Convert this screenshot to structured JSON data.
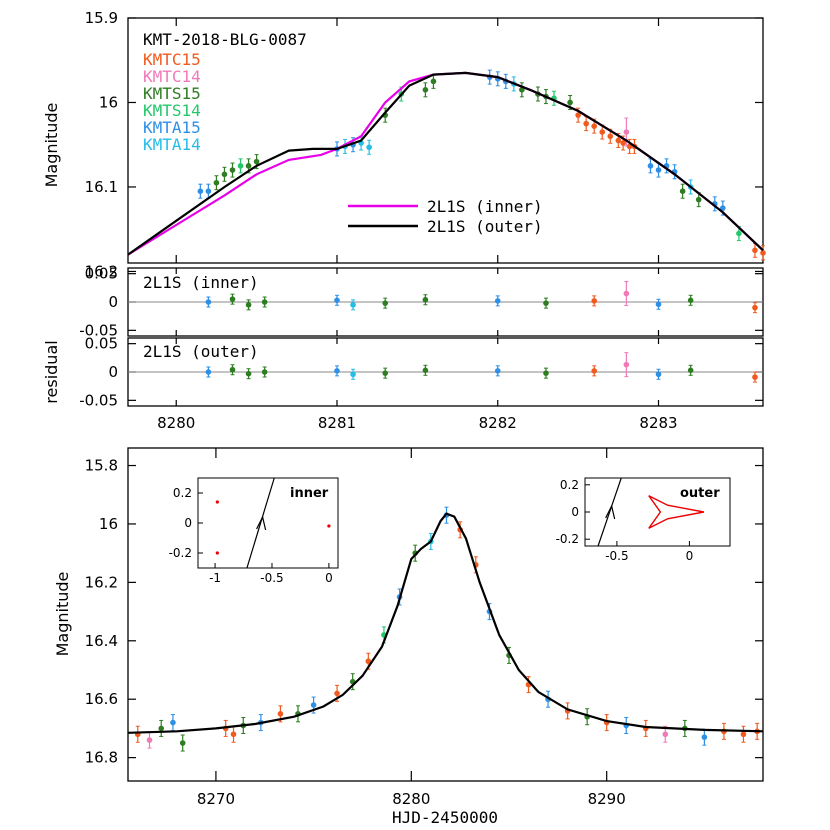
{
  "chart_data": [
    {
      "type": "scatter",
      "panel": "top light curve",
      "ylabel": "Magnitude",
      "xlim": [
        8279.7,
        8283.65
      ],
      "ylim": [
        16.19,
        15.9
      ],
      "y_inverted": true,
      "yticks": [
        15.9,
        16,
        16.1,
        16.2
      ],
      "ytick_labels": [
        "15.9",
        "16",
        "16.1",
        "16.2"
      ],
      "event_label": "KMT-2018-BLG-0087",
      "legend": [
        {
          "name": "KMTC15",
          "color": "#f05a1e"
        },
        {
          "name": "KMTC14",
          "color": "#f07ab8"
        },
        {
          "name": "KMTS15",
          "color": "#2e7d22"
        },
        {
          "name": "KMTS14",
          "color": "#23c76a"
        },
        {
          "name": "KMTA15",
          "color": "#2e8fe6"
        },
        {
          "name": "KMTA14",
          "color": "#25bde6"
        }
      ],
      "models": [
        {
          "name": "2L1S (inner)",
          "color": "#e800e8",
          "x": [
            8279.7,
            8280.0,
            8280.3,
            8280.5,
            8280.7,
            8280.9,
            8281.0,
            8281.15,
            8281.3,
            8281.45,
            8281.6,
            8281.8,
            8282.0,
            8282.2,
            8282.5,
            8282.8,
            8283.1,
            8283.4,
            8283.65
          ],
          "y": [
            16.18,
            16.145,
            16.11,
            16.085,
            16.068,
            16.062,
            16.055,
            16.04,
            16.0,
            15.975,
            15.967,
            15.965,
            15.97,
            15.985,
            16.01,
            16.045,
            16.085,
            16.13,
            16.175
          ]
        },
        {
          "name": "2L1S (outer)",
          "color": "#000000",
          "x": [
            8279.7,
            8280.0,
            8280.3,
            8280.5,
            8280.7,
            8280.85,
            8281.0,
            8281.15,
            8281.3,
            8281.45,
            8281.6,
            8281.8,
            8282.0,
            8282.2,
            8282.5,
            8282.8,
            8283.1,
            8283.4,
            8283.65
          ],
          "y": [
            16.18,
            16.14,
            16.1,
            16.075,
            16.057,
            16.055,
            16.055,
            16.045,
            16.012,
            15.98,
            15.967,
            15.965,
            15.97,
            15.985,
            16.01,
            16.045,
            16.085,
            16.13,
            16.175
          ]
        }
      ],
      "series": [
        {
          "name": "KMTC15",
          "x": [
            8282.5,
            8282.55,
            8282.6,
            8282.65,
            8282.7,
            8282.75,
            8282.78,
            8282.82,
            8282.85,
            8283.6,
            8283.65
          ],
          "y": [
            16.015,
            16.025,
            16.028,
            16.035,
            16.04,
            16.045,
            16.048,
            16.052,
            16.052,
            16.175,
            16.178
          ]
        },
        {
          "name": "KMTC14",
          "x": [
            8282.8
          ],
          "y": [
            16.035
          ]
        },
        {
          "name": "KMTS15",
          "x": [
            8280.25,
            8280.3,
            8280.35,
            8280.45,
            8280.5,
            8281.3,
            8281.55,
            8281.6,
            8282.15,
            8282.25,
            8282.3,
            8282.45,
            8283.15,
            8283.25
          ],
          "y": [
            16.095,
            16.085,
            16.08,
            16.075,
            16.07,
            16.015,
            15.985,
            15.975,
            15.985,
            15.99,
            15.993,
            16.0,
            16.105,
            16.115
          ]
        },
        {
          "name": "KMTS14",
          "x": [
            8280.4,
            8281.4,
            8282.35,
            8283.5
          ],
          "y": [
            16.075,
            15.99,
            15.995,
            16.155
          ]
        },
        {
          "name": "KMTA15",
          "x": [
            8280.15,
            8280.2,
            8281.0,
            8281.1,
            8281.95,
            8282.0,
            8282.05,
            8282.95,
            8283.0,
            8283.05,
            8283.1,
            8283.35,
            8283.4
          ],
          "y": [
            16.105,
            16.105,
            16.055,
            16.05,
            15.97,
            15.972,
            15.975,
            16.075,
            16.08,
            16.075,
            16.082,
            16.12,
            16.125
          ]
        },
        {
          "name": "KMTA14",
          "x": [
            8281.05,
            8281.15,
            8281.2,
            8282.1,
            8283.2
          ],
          "y": [
            16.052,
            16.048,
            16.053,
            15.978,
            16.1
          ]
        }
      ]
    },
    {
      "type": "scatter",
      "panel": "residual (inner)",
      "label": "2L1S (inner)",
      "ylim": [
        -0.06,
        0.06
      ],
      "yticks": [
        0.05,
        0,
        -0.05
      ],
      "ytick_labels": [
        "0.05",
        "0",
        "-0.05"
      ],
      "points": [
        {
          "x": 8280.2,
          "y": 0.0,
          "s": "KMTA15"
        },
        {
          "x": 8280.35,
          "y": 0.005,
          "s": "KMTS15"
        },
        {
          "x": 8280.45,
          "y": -0.005,
          "s": "KMTS15"
        },
        {
          "x": 8280.55,
          "y": 0.0,
          "s": "KMTS15"
        },
        {
          "x": 8281.0,
          "y": 0.003,
          "s": "KMTA15"
        },
        {
          "x": 8281.1,
          "y": -0.005,
          "s": "KMTA14"
        },
        {
          "x": 8281.3,
          "y": -0.002,
          "s": "KMTS15"
        },
        {
          "x": 8281.55,
          "y": 0.004,
          "s": "KMTS15"
        },
        {
          "x": 8282.0,
          "y": 0.002,
          "s": "KMTA15"
        },
        {
          "x": 8282.3,
          "y": -0.002,
          "s": "KMTS15"
        },
        {
          "x": 8282.6,
          "y": 0.002,
          "s": "KMTC15"
        },
        {
          "x": 8282.8,
          "y": 0.015,
          "s": "KMTC14"
        },
        {
          "x": 8283.0,
          "y": -0.004,
          "s": "KMTA15"
        },
        {
          "x": 8283.2,
          "y": 0.003,
          "s": "KMTS15"
        },
        {
          "x": 8283.6,
          "y": -0.01,
          "s": "KMTC15"
        }
      ]
    },
    {
      "type": "scatter",
      "panel": "residual (outer)",
      "label": "2L1S (outer)",
      "ylabel": "residual",
      "ylim": [
        -0.06,
        0.06
      ],
      "yticks": [
        0.05,
        0,
        -0.05
      ],
      "ytick_labels": [
        "0.05",
        "0",
        "-0.05"
      ],
      "xticks": [
        8280,
        8281,
        8282,
        8283
      ],
      "xtick_labels": [
        "8280",
        "8281",
        "8282",
        "8283"
      ],
      "points": [
        {
          "x": 8280.2,
          "y": 0.0,
          "s": "KMTA15"
        },
        {
          "x": 8280.35,
          "y": 0.004,
          "s": "KMTS15"
        },
        {
          "x": 8280.45,
          "y": -0.003,
          "s": "KMTS15"
        },
        {
          "x": 8280.55,
          "y": 0.0,
          "s": "KMTS15"
        },
        {
          "x": 8281.0,
          "y": 0.002,
          "s": "KMTA15"
        },
        {
          "x": 8281.1,
          "y": -0.004,
          "s": "KMTA14"
        },
        {
          "x": 8281.3,
          "y": -0.002,
          "s": "KMTS15"
        },
        {
          "x": 8281.55,
          "y": 0.003,
          "s": "KMTS15"
        },
        {
          "x": 8282.0,
          "y": 0.002,
          "s": "KMTA15"
        },
        {
          "x": 8282.3,
          "y": -0.002,
          "s": "KMTS15"
        },
        {
          "x": 8282.6,
          "y": 0.002,
          "s": "KMTC15"
        },
        {
          "x": 8282.8,
          "y": 0.013,
          "s": "KMTC14"
        },
        {
          "x": 8283.0,
          "y": -0.004,
          "s": "KMTA15"
        },
        {
          "x": 8283.2,
          "y": 0.003,
          "s": "KMTS15"
        },
        {
          "x": 8283.6,
          "y": -0.009,
          "s": "KMTC15"
        }
      ]
    },
    {
      "type": "scatter",
      "panel": "full light curve",
      "xlabel": "HJD-2450000",
      "ylabel": "Magnitude",
      "xlim": [
        8265.5,
        8298
      ],
      "ylim": [
        16.88,
        15.74
      ],
      "y_inverted": true,
      "xticks": [
        8270,
        8280,
        8290
      ],
      "xtick_labels": [
        "8270",
        "8280",
        "8290"
      ],
      "yticks": [
        15.8,
        16,
        16.2,
        16.4,
        16.6,
        16.8
      ],
      "ytick_labels": [
        "15.8",
        "16",
        "16.2",
        "16.4",
        "16.6",
        "16.8"
      ],
      "model": {
        "x": [
          8265.5,
          8268,
          8270,
          8272,
          8274,
          8275.5,
          8276.5,
          8277.5,
          8278.5,
          8279.3,
          8280,
          8280.5,
          8281,
          8281.5,
          8281.8,
          8282.2,
          8282.8,
          8283.5,
          8284.5,
          8285.5,
          8286.5,
          8288,
          8290,
          8292,
          8295,
          8298
        ],
        "y": [
          16.715,
          16.71,
          16.7,
          16.685,
          16.66,
          16.625,
          16.585,
          16.52,
          16.42,
          16.28,
          16.12,
          16.085,
          16.06,
          15.99,
          15.965,
          15.975,
          16.05,
          16.2,
          16.38,
          16.5,
          16.575,
          16.635,
          16.675,
          16.695,
          16.705,
          16.71
        ]
      },
      "points": [
        {
          "x": 8266,
          "y": 16.72,
          "s": "KMTC15"
        },
        {
          "x": 8266.6,
          "y": 16.74,
          "s": "KMTC14"
        },
        {
          "x": 8267.2,
          "y": 16.7,
          "s": "KMTS15"
        },
        {
          "x": 8267.8,
          "y": 16.68,
          "s": "KMTA15"
        },
        {
          "x": 8268.3,
          "y": 16.75,
          "s": "KMTS15"
        },
        {
          "x": 8270.5,
          "y": 16.7,
          "s": "KMTC15"
        },
        {
          "x": 8270.9,
          "y": 16.72,
          "s": "KMTC15"
        },
        {
          "x": 8271.4,
          "y": 16.69,
          "s": "KMTS15"
        },
        {
          "x": 8272.3,
          "y": 16.68,
          "s": "KMTA15"
        },
        {
          "x": 8273.3,
          "y": 16.65,
          "s": "KMTC15"
        },
        {
          "x": 8274.2,
          "y": 16.65,
          "s": "KMTS15"
        },
        {
          "x": 8275,
          "y": 16.62,
          "s": "KMTA15"
        },
        {
          "x": 8276.2,
          "y": 16.58,
          "s": "KMTC15"
        },
        {
          "x": 8277,
          "y": 16.54,
          "s": "KMTS15"
        },
        {
          "x": 8277.8,
          "y": 16.47,
          "s": "KMTC15"
        },
        {
          "x": 8278.6,
          "y": 16.38,
          "s": "KMTS14"
        },
        {
          "x": 8279.4,
          "y": 16.25,
          "s": "KMTA15"
        },
        {
          "x": 8280.2,
          "y": 16.1,
          "s": "KMTS15"
        },
        {
          "x": 8281,
          "y": 16.06,
          "s": "KMTA14"
        },
        {
          "x": 8281.8,
          "y": 15.97,
          "s": "KMTA15"
        },
        {
          "x": 8282.5,
          "y": 16.02,
          "s": "KMTC15"
        },
        {
          "x": 8283.3,
          "y": 16.14,
          "s": "KMTC15"
        },
        {
          "x": 8284,
          "y": 16.3,
          "s": "KMTA15"
        },
        {
          "x": 8285,
          "y": 16.45,
          "s": "KMTS15"
        },
        {
          "x": 8286,
          "y": 16.55,
          "s": "KMTC15"
        },
        {
          "x": 8287,
          "y": 16.6,
          "s": "KMTA15"
        },
        {
          "x": 8288,
          "y": 16.64,
          "s": "KMTC15"
        },
        {
          "x": 8289,
          "y": 16.66,
          "s": "KMTS15"
        },
        {
          "x": 8290,
          "y": 16.68,
          "s": "KMTC15"
        },
        {
          "x": 8291,
          "y": 16.69,
          "s": "KMTA15"
        },
        {
          "x": 8292,
          "y": 16.7,
          "s": "KMTC15"
        },
        {
          "x": 8293,
          "y": 16.72,
          "s": "KMTC14"
        },
        {
          "x": 8294,
          "y": 16.7,
          "s": "KMTS15"
        },
        {
          "x": 8295,
          "y": 16.73,
          "s": "KMTA15"
        },
        {
          "x": 8296,
          "y": 16.71,
          "s": "KMTC15"
        },
        {
          "x": 8297,
          "y": 16.72,
          "s": "KMTC15"
        },
        {
          "x": 8297.7,
          "y": 16.71,
          "s": "KMTC15"
        }
      ]
    },
    {
      "type": "scatter",
      "panel": "inset inner",
      "label": "inner",
      "xlim": [
        -1.15,
        0.08
      ],
      "ylim": [
        -0.3,
        0.3
      ],
      "xticks": [
        -1,
        -0.5,
        0
      ],
      "xtick_labels": [
        "-1",
        "-0.5",
        "0"
      ],
      "yticks": [
        0.2,
        0,
        -0.2
      ],
      "ytick_labels": [
        "0.2",
        "0",
        "-0.2"
      ],
      "caustics": [
        [
          -0.98,
          0.14
        ],
        [
          -0.98,
          -0.2
        ],
        [
          0.0,
          -0.02
        ]
      ],
      "trajectory": {
        "x0": -0.72,
        "y0": -0.3,
        "x1": -0.48,
        "y1": 0.3
      }
    },
    {
      "type": "scatter",
      "panel": "inset outer",
      "label": "outer",
      "xlim": [
        -0.72,
        0.28
      ],
      "ylim": [
        -0.25,
        0.25
      ],
      "xticks": [
        -0.5,
        0
      ],
      "xtick_labels": [
        "-0.5",
        "0"
      ],
      "yticks": [
        0.2,
        0,
        -0.2
      ],
      "ytick_labels": [
        "0.2",
        "0",
        "-0.2"
      ],
      "caustic_outline": [
        [
          -0.28,
          0.12
        ],
        [
          -0.15,
          0.05
        ],
        [
          0.1,
          0.0
        ],
        [
          -0.15,
          -0.05
        ],
        [
          -0.28,
          -0.12
        ],
        [
          -0.2,
          0.0
        ]
      ],
      "trajectory": {
        "x0": -0.63,
        "y0": -0.25,
        "x1": -0.47,
        "y1": 0.25
      }
    }
  ]
}
